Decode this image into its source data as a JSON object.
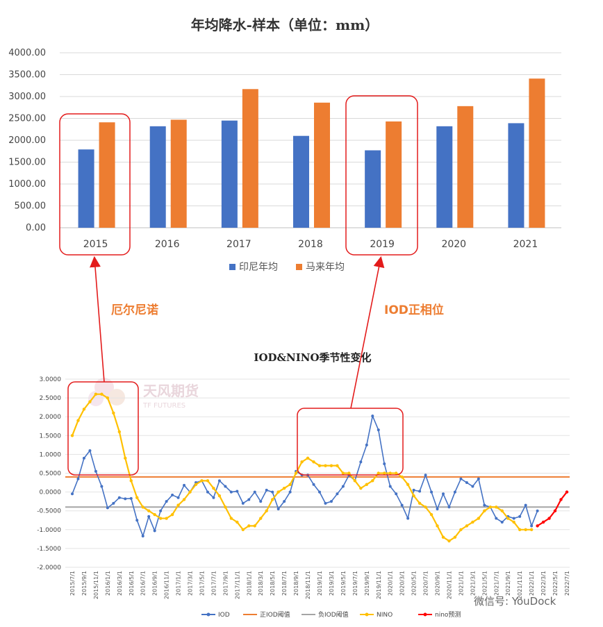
{
  "chart_data": [
    {
      "type": "bar",
      "title": "年均降水-样本（单位：mm）",
      "categories": [
        "2015",
        "2016",
        "2017",
        "2018",
        "2019",
        "2020",
        "2021"
      ],
      "series": [
        {
          "name": "印尼年均",
          "color": "#4472C4",
          "values": [
            1790,
            2320,
            2450,
            2100,
            1770,
            2320,
            2390
          ]
        },
        {
          "name": "马来年均",
          "color": "#ED7D31",
          "values": [
            2410,
            2470,
            3170,
            2860,
            2430,
            2780,
            3410
          ]
        }
      ],
      "ylim": [
        0,
        4000
      ],
      "yticks": [
        "0.00",
        "500.00",
        "1000.00",
        "1500.00",
        "2000.00",
        "2500.00",
        "3000.00",
        "3500.00",
        "4000.00"
      ],
      "grid": true,
      "legend": "bottom"
    },
    {
      "type": "line",
      "title": "IOD&NINO季节性变化",
      "ylim": [
        -2,
        3
      ],
      "yticks": [
        "-2.0000",
        "-1.5000",
        "-1.0000",
        "-0.5000",
        "0.0000",
        "0.5000",
        "1.0000",
        "1.5000",
        "2.0000",
        "2.5000",
        "3.0000"
      ],
      "x_labels": [
        "2015/7/1",
        "2015/9/1",
        "2015/11/1",
        "2016/1/1",
        "2016/3/1",
        "2016/5/1",
        "2016/7/1",
        "2016/9/1",
        "2016/11/1",
        "2017/1/1",
        "2017/3/1",
        "2017/5/1",
        "2017/7/1",
        "2017/9/1",
        "2017/11/1",
        "2018/1/1",
        "2018/3/1",
        "2018/5/1",
        "2018/7/1",
        "2018/9/1",
        "2018/11/1",
        "2019/1/1",
        "2019/3/1",
        "2019/5/1",
        "2019/7/1",
        "2019/9/1",
        "2019/11/1",
        "2020/1/1",
        "2020/3/1",
        "2020/5/1",
        "2020/7/1",
        "2020/9/1",
        "2020/11/1",
        "2021/1/1",
        "2021/3/1",
        "2021/5/1",
        "2021/7/1",
        "2021/9/1",
        "2021/11/1",
        "2022/1/1",
        "2022/3/1",
        "2022/5/1",
        "2022/7/1"
      ],
      "series": [
        {
          "name": "IOD",
          "color": "#4472C4",
          "start_index": 0,
          "values": [
            -0.05,
            0.35,
            0.9,
            1.1,
            0.55,
            0.15,
            -0.42,
            -0.3,
            -0.15,
            -0.18,
            -0.17,
            -0.75,
            -1.17,
            -0.65,
            -1.03,
            -0.5,
            -0.25,
            -0.08,
            -0.15,
            0.18,
            0.0,
            0.25,
            0.3,
            0.0,
            -0.15,
            0.3,
            0.15,
            0.0,
            0.02,
            -0.3,
            -0.2,
            0.0,
            -0.25,
            0.05,
            0.0,
            -0.45,
            -0.25,
            0.0,
            0.55,
            0.45,
            0.45,
            0.2,
            0.0,
            -0.3,
            -0.25,
            -0.05,
            0.15,
            0.45,
            0.3,
            0.8,
            1.25,
            2.02,
            1.65,
            0.75,
            0.15,
            -0.05,
            -0.35,
            -0.7,
            0.05,
            0.02,
            0.45,
            0.0,
            -0.45,
            -0.05,
            -0.4,
            0.0,
            0.35,
            0.25,
            0.15,
            0.35,
            -0.35,
            -0.4,
            -0.7,
            -0.8,
            -0.65,
            -0.7,
            -0.65,
            -0.35,
            -0.9,
            -0.5
          ]
        },
        {
          "name": "NINO",
          "color": "#FFC000",
          "start_index": 0,
          "values": [
            1.5,
            1.9,
            2.2,
            2.4,
            2.6,
            2.6,
            2.5,
            2.1,
            1.6,
            0.9,
            0.3,
            -0.15,
            -0.4,
            -0.5,
            -0.6,
            -0.7,
            -0.7,
            -0.6,
            -0.35,
            -0.2,
            0.0,
            0.2,
            0.3,
            0.3,
            0.1,
            -0.1,
            -0.4,
            -0.7,
            -0.8,
            -1.0,
            -0.9,
            -0.9,
            -0.7,
            -0.5,
            -0.2,
            0.0,
            0.1,
            0.2,
            0.5,
            0.8,
            0.9,
            0.8,
            0.7,
            0.7,
            0.7,
            0.7,
            0.5,
            0.5,
            0.3,
            0.1,
            0.2,
            0.3,
            0.5,
            0.5,
            0.5,
            0.5,
            0.4,
            0.2,
            -0.1,
            -0.3,
            -0.4,
            -0.6,
            -0.9,
            -1.2,
            -1.3,
            -1.2,
            -1.0,
            -0.9,
            -0.8,
            -0.7,
            -0.5,
            -0.4,
            -0.4,
            -0.5,
            -0.7,
            -0.8,
            -1.0,
            -1.0,
            -1.0
          ]
        },
        {
          "name": "nino预测",
          "color": "#FF0000",
          "start_index": 79,
          "values": [
            -0.9,
            -0.8,
            -0.7,
            -0.5,
            -0.2,
            0.0
          ]
        },
        {
          "name": "正IOD阈值",
          "color": "#ED7D31",
          "constant": 0.4
        },
        {
          "name": "负IOD阈值",
          "color": "#A5A5A5",
          "constant": -0.4
        }
      ],
      "legend": "bottom"
    }
  ],
  "annotations": {
    "el_nino": "厄尔尼诺",
    "iod_positive": "IOD正相位"
  },
  "watermark": {
    "brand": "天风期货",
    "brand_en": "TF FUTURES",
    "wechat": "微信号: YouDock"
  }
}
